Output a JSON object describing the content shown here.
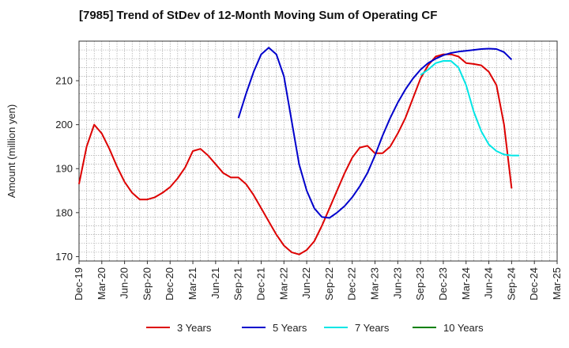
{
  "chart_data": {
    "type": "line",
    "title": "[7985]  Trend of StDev of 12-Month Moving Sum of Operating CF",
    "ylabel": "Amount (million yen)",
    "xlabel": "",
    "ylim": [
      169,
      219
    ],
    "yticks": [
      170,
      180,
      190,
      200,
      210
    ],
    "x_tick_labels": [
      "Dec-19",
      "Mar-20",
      "Jun-20",
      "Sep-20",
      "Dec-20",
      "Mar-21",
      "Jun-21",
      "Sep-21",
      "Dec-21",
      "Mar-22",
      "Jun-22",
      "Sep-22",
      "Dec-22",
      "Mar-23",
      "Jun-23",
      "Sep-23",
      "Dec-23",
      "Mar-24",
      "Jun-24",
      "Sep-24",
      "Dec-24",
      "Mar-25"
    ],
    "grid": true,
    "legend_position": "bottom",
    "series": [
      {
        "name": "3 Years",
        "color": "#dd0000",
        "start_index": 0,
        "values": [
          186.5,
          195.0,
          200.0,
          198.0,
          194.5,
          190.5,
          187.0,
          184.5,
          183.0,
          183.0,
          183.5,
          184.5,
          185.8,
          187.8,
          190.3,
          194.0,
          194.5,
          193.0,
          191.0,
          189.0,
          188.0,
          188.0,
          186.5,
          184.0,
          181.0,
          178.0,
          175.0,
          172.5,
          171.0,
          170.5,
          171.5,
          173.5,
          177.0,
          181.0,
          185.0,
          189.0,
          192.5,
          194.8,
          195.2,
          193.5,
          193.5,
          195.0,
          198.0,
          201.5,
          206.0,
          210.5,
          213.5,
          215.5,
          216.0,
          216.0,
          215.5,
          214.0,
          213.8,
          213.5,
          212.0,
          209.0,
          200.0,
          185.5
        ]
      },
      {
        "name": "5 Years",
        "color": "#0000cc",
        "start_index": 21,
        "values": [
          201.5,
          207.0,
          212.0,
          216.0,
          217.5,
          216.0,
          211.0,
          201.0,
          191.0,
          185.0,
          181.0,
          179.0,
          178.8,
          180.0,
          181.5,
          183.5,
          186.0,
          189.0,
          193.0,
          197.5,
          201.5,
          205.0,
          208.0,
          210.5,
          212.5,
          214.0,
          215.0,
          215.8,
          216.3,
          216.6,
          216.8,
          217.0,
          217.2,
          217.3,
          217.2,
          216.5,
          214.8
        ]
      },
      {
        "name": "7 Years",
        "color": "#00e5e5",
        "start_index": 45,
        "values": [
          211.3,
          212.5,
          214.0,
          214.5,
          214.5,
          213.0,
          209.0,
          203.0,
          198.5,
          195.5,
          194.0,
          193.2,
          193.0,
          193.0
        ]
      },
      {
        "name": "10 Years",
        "color": "#008000",
        "start_index": 0,
        "values": []
      }
    ]
  }
}
